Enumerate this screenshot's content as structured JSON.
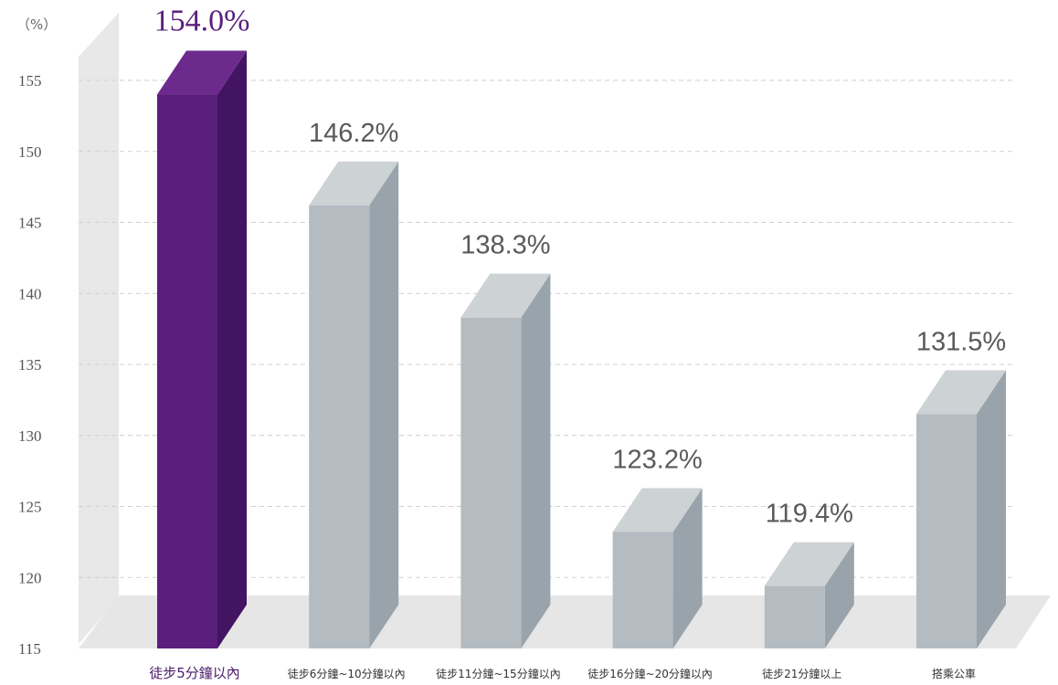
{
  "chart_data": {
    "type": "bar",
    "unit_label": "（%）",
    "categories": [
      "徒步5分鐘以內",
      "徒步6分鐘~10分鐘以內",
      "徒步11分鐘~15分鐘以內",
      "徒步16分鐘~20分鐘以內",
      "徒步21分鐘以上",
      "搭乘公車"
    ],
    "values": [
      154.0,
      146.2,
      138.3,
      123.2,
      119.4,
      131.5
    ],
    "value_labels": [
      "154.0%",
      "146.2%",
      "138.3%",
      "123.2%",
      "119.4%",
      "131.5%"
    ],
    "ylim": [
      115,
      155
    ],
    "yticks": [
      115,
      120,
      125,
      130,
      135,
      140,
      145,
      150,
      155
    ],
    "grid": true,
    "highlight_index": 0,
    "colors": {
      "highlight_front": "#5a1e7c",
      "highlight_side": "#431462",
      "highlight_top": "#6b2a8c",
      "bar_front": "#b4bcc2",
      "bar_side": "#99a3ab",
      "bar_top": "#cdd2d4",
      "wall": "#e8e8e8",
      "floor": "#e6e6e6",
      "grid": "#d0d0d0"
    }
  }
}
